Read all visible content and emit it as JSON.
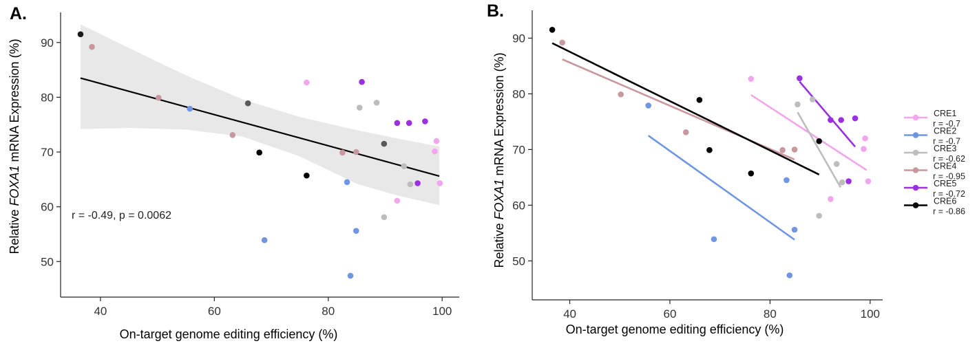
{
  "chart_data": [
    {
      "panel": "A.",
      "type": "scatter",
      "xlabel": "On-target genome editing efficiency (%)",
      "ylabel_parts": [
        "Relative ",
        "FOXA1",
        " mRNA Expression (%)"
      ],
      "xlim": [
        33,
        103
      ],
      "ylim": [
        43.5,
        95.5
      ],
      "xticks": [
        40,
        60,
        80,
        100
      ],
      "yticks": [
        50,
        60,
        70,
        80,
        90
      ],
      "annotation": "r = -0.49, p = 0.0062",
      "fit": {
        "x": [
          36.5,
          99.5
        ],
        "y": [
          83.5,
          65.6
        ]
      },
      "band": {
        "x": [
          36.5,
          45,
          55,
          65,
          75,
          85,
          92,
          99.5
        ],
        "upper": [
          93.3,
          89.0,
          84.0,
          79.6,
          76.4,
          74.0,
          72.5,
          71.0
        ],
        "lower": [
          74.2,
          74.4,
          74.1,
          72.8,
          69.2,
          64.2,
          62.1,
          60.3
        ]
      },
      "points": [
        {
          "x": 36.5,
          "y": 91.5,
          "c": "#1a1a1a"
        },
        {
          "x": 38.5,
          "y": 89.2,
          "c": "#c9989f"
        },
        {
          "x": 50.2,
          "y": 79.9,
          "c": "#c9989f"
        },
        {
          "x": 55.7,
          "y": 77.9,
          "c": "#6f96e3"
        },
        {
          "x": 65.9,
          "y": 78.9,
          "c": "#595959"
        },
        {
          "x": 63.2,
          "y": 73.1,
          "c": "#c9989f"
        },
        {
          "x": 67.9,
          "y": 69.9,
          "c": "#000000"
        },
        {
          "x": 68.8,
          "y": 53.9,
          "c": "#6f96e3"
        },
        {
          "x": 76.2,
          "y": 82.7,
          "c": "#f2a6ec"
        },
        {
          "x": 76.2,
          "y": 65.7,
          "c": "#000000"
        },
        {
          "x": 82.5,
          "y": 69.9,
          "c": "#c9989f"
        },
        {
          "x": 83.3,
          "y": 64.5,
          "c": "#6f96e3"
        },
        {
          "x": 83.9,
          "y": 47.4,
          "c": "#6f96e3"
        },
        {
          "x": 84.9,
          "y": 55.6,
          "c": "#6f96e3"
        },
        {
          "x": 84.9,
          "y": 70.0,
          "c": "#c9989f"
        },
        {
          "x": 85.5,
          "y": 78.1,
          "c": "#bdbdbd"
        },
        {
          "x": 85.9,
          "y": 82.8,
          "c": "#9b30e0"
        },
        {
          "x": 88.5,
          "y": 79.0,
          "c": "#bdbdbd"
        },
        {
          "x": 89.8,
          "y": 58.1,
          "c": "#bdbdbd"
        },
        {
          "x": 89.8,
          "y": 71.5,
          "c": "#595959"
        },
        {
          "x": 92.1,
          "y": 61.1,
          "c": "#f2a6ec"
        },
        {
          "x": 92.1,
          "y": 75.3,
          "c": "#9b30e0"
        },
        {
          "x": 93.3,
          "y": 67.4,
          "c": "#bdbdbd"
        },
        {
          "x": 94.2,
          "y": 75.3,
          "c": "#9b30e0"
        },
        {
          "x": 94.4,
          "y": 64.1,
          "c": "#bdbdbd"
        },
        {
          "x": 95.7,
          "y": 64.3,
          "c": "#9b30e0"
        },
        {
          "x": 97.0,
          "y": 75.6,
          "c": "#9b30e0"
        },
        {
          "x": 98.7,
          "y": 70.1,
          "c": "#f2a6ec"
        },
        {
          "x": 99.0,
          "y": 72.0,
          "c": "#f2a6ec"
        },
        {
          "x": 99.6,
          "y": 64.3,
          "c": "#f2a6ec"
        }
      ]
    },
    {
      "panel": "B.",
      "type": "scatter",
      "xlabel": "On-target genome editing efficiency (%)",
      "ylabel_parts": [
        "Relative ",
        "FOXA1",
        " mRNA Expression (%)"
      ],
      "xlim": [
        32.5,
        102.5
      ],
      "ylim": [
        43,
        95
      ],
      "xticks": [
        40,
        60,
        80,
        100
      ],
      "yticks": [
        50,
        60,
        70,
        80,
        90
      ],
      "series": [
        {
          "name": "CRE1",
          "r": "r = -0.7",
          "color": "#f2a6ec",
          "points": [
            [
              76.2,
              82.7
            ],
            [
              92.1,
              61.1
            ],
            [
              98.7,
              70.1
            ],
            [
              99.0,
              72.0
            ],
            [
              99.6,
              64.3
            ]
          ],
          "fit": [
            [
              76.2,
              79.8
            ],
            [
              99.3,
              66.3
            ]
          ]
        },
        {
          "name": "CRE2",
          "r": "r = -0.7",
          "color": "#6f96e3",
          "points": [
            [
              55.7,
              77.9
            ],
            [
              68.8,
              53.9
            ],
            [
              83.3,
              64.5
            ],
            [
              83.9,
              47.4
            ],
            [
              84.9,
              55.6
            ]
          ],
          "fit": [
            [
              55.7,
              72.5
            ],
            [
              84.9,
              53.8
            ]
          ]
        },
        {
          "name": "CRE3",
          "r": "r = -0.62",
          "color": "#bdbdbd",
          "points": [
            [
              85.5,
              78.1
            ],
            [
              88.5,
              79.0
            ],
            [
              89.8,
              58.1
            ],
            [
              93.3,
              67.4
            ],
            [
              94.4,
              64.1
            ]
          ],
          "fit": [
            [
              85.5,
              76.7
            ],
            [
              94.1,
              63.2
            ]
          ]
        },
        {
          "name": "CRE4",
          "r": "r = -0.95",
          "color": "#c9989f",
          "points": [
            [
              38.5,
              89.2
            ],
            [
              50.2,
              79.9
            ],
            [
              63.2,
              73.1
            ],
            [
              82.5,
              69.9
            ],
            [
              84.9,
              70.0
            ]
          ],
          "fit": [
            [
              38.5,
              86.2
            ],
            [
              84.9,
              68.2
            ]
          ]
        },
        {
          "name": "CRE5",
          "r": "r = -0.72",
          "color": "#9b30e0",
          "points": [
            [
              85.9,
              82.8
            ],
            [
              92.1,
              75.3
            ],
            [
              94.2,
              75.3
            ],
            [
              95.7,
              64.3
            ],
            [
              97.0,
              75.6
            ]
          ],
          "fit": [
            [
              85.9,
              82.2
            ],
            [
              97.0,
              70.5
            ]
          ]
        },
        {
          "name": "CRE6",
          "r": "r = -0.86",
          "color": "#000000",
          "points": [
            [
              36.5,
              91.5
            ],
            [
              65.9,
              78.9
            ],
            [
              67.9,
              69.9
            ],
            [
              76.2,
              65.7
            ],
            [
              89.8,
              71.5
            ]
          ],
          "fit": [
            [
              36.5,
              89.1
            ],
            [
              89.8,
              65.5
            ]
          ]
        }
      ]
    }
  ]
}
